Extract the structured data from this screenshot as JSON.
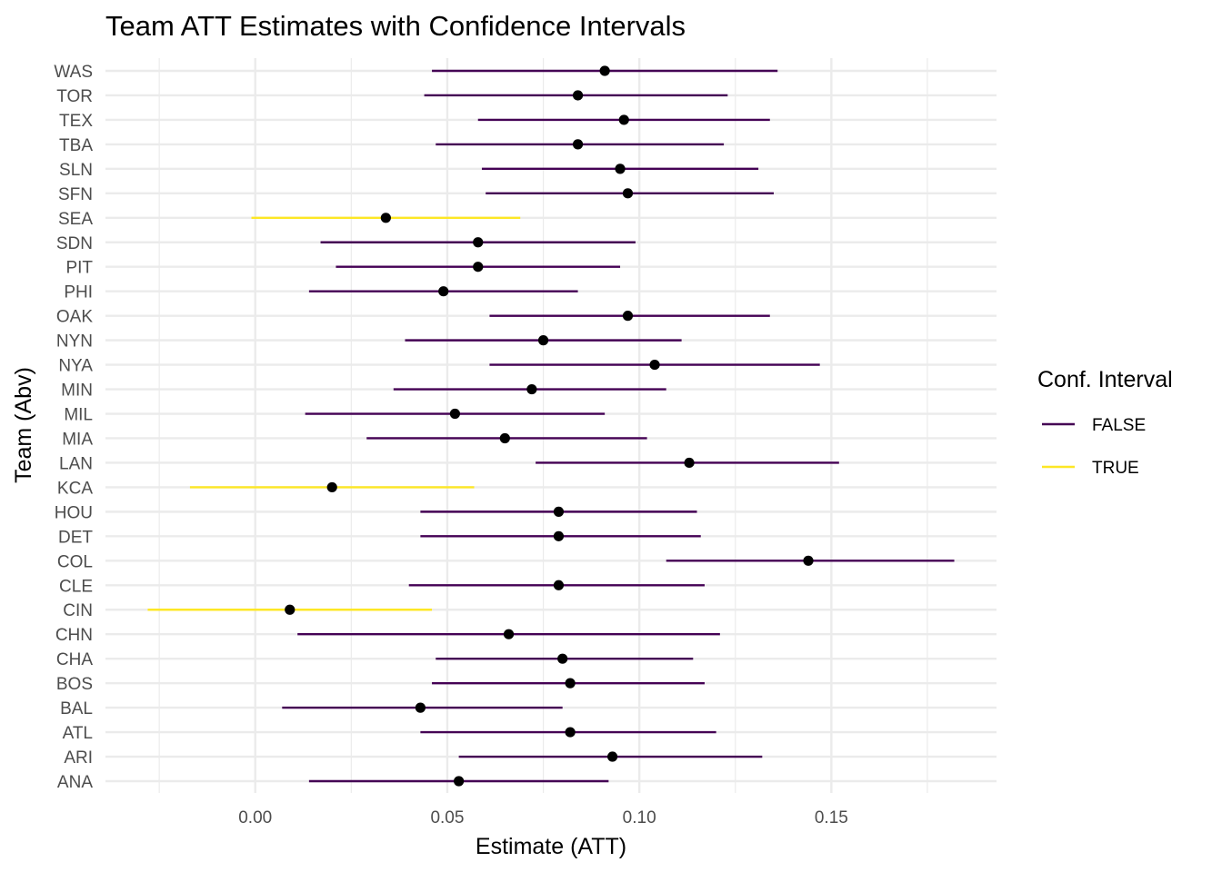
{
  "chart_data": {
    "type": "errorbar",
    "title": "Team ATT Estimates with Confidence Intervals",
    "xlabel": "Estimate (ATT)",
    "ylabel": "Team (Abv)",
    "xlim": [
      -0.039,
      0.193
    ],
    "x_ticks": [
      0.0,
      0.05,
      0.1,
      0.15
    ],
    "x_tick_labels": [
      "0.00",
      "0.05",
      "0.10",
      "0.15"
    ],
    "grid": true,
    "legend": {
      "title": "Conf. Interval",
      "position": "right",
      "entries": [
        {
          "label": "FALSE",
          "color": "#440154"
        },
        {
          "label": "TRUE",
          "color": "#FDE725"
        }
      ]
    },
    "point_color": "#000000",
    "categories": [
      "ANA",
      "ARI",
      "ATL",
      "BAL",
      "BOS",
      "CHA",
      "CHN",
      "CIN",
      "CLE",
      "COL",
      "DET",
      "HOU",
      "KCA",
      "LAN",
      "MIA",
      "MIL",
      "MIN",
      "NYA",
      "NYN",
      "OAK",
      "PHI",
      "PIT",
      "SDN",
      "SEA",
      "SFN",
      "SLN",
      "TBA",
      "TEX",
      "TOR",
      "WAS"
    ],
    "points": [
      {
        "team": "ANA",
        "estimate": 0.053,
        "lower": 0.014,
        "upper": 0.092,
        "ci": "FALSE"
      },
      {
        "team": "ARI",
        "estimate": 0.093,
        "lower": 0.053,
        "upper": 0.132,
        "ci": "FALSE"
      },
      {
        "team": "ATL",
        "estimate": 0.082,
        "lower": 0.043,
        "upper": 0.12,
        "ci": "FALSE"
      },
      {
        "team": "BAL",
        "estimate": 0.043,
        "lower": 0.007,
        "upper": 0.08,
        "ci": "FALSE"
      },
      {
        "team": "BOS",
        "estimate": 0.082,
        "lower": 0.046,
        "upper": 0.117,
        "ci": "FALSE"
      },
      {
        "team": "CHA",
        "estimate": 0.08,
        "lower": 0.047,
        "upper": 0.114,
        "ci": "FALSE"
      },
      {
        "team": "CHN",
        "estimate": 0.066,
        "lower": 0.011,
        "upper": 0.121,
        "ci": "FALSE"
      },
      {
        "team": "CIN",
        "estimate": 0.009,
        "lower": -0.028,
        "upper": 0.046,
        "ci": "TRUE"
      },
      {
        "team": "CLE",
        "estimate": 0.079,
        "lower": 0.04,
        "upper": 0.117,
        "ci": "FALSE"
      },
      {
        "team": "COL",
        "estimate": 0.144,
        "lower": 0.107,
        "upper": 0.182,
        "ci": "FALSE"
      },
      {
        "team": "DET",
        "estimate": 0.079,
        "lower": 0.043,
        "upper": 0.116,
        "ci": "FALSE"
      },
      {
        "team": "HOU",
        "estimate": 0.079,
        "lower": 0.043,
        "upper": 0.115,
        "ci": "FALSE"
      },
      {
        "team": "KCA",
        "estimate": 0.02,
        "lower": -0.017,
        "upper": 0.057,
        "ci": "TRUE"
      },
      {
        "team": "LAN",
        "estimate": 0.113,
        "lower": 0.073,
        "upper": 0.152,
        "ci": "FALSE"
      },
      {
        "team": "MIA",
        "estimate": 0.065,
        "lower": 0.029,
        "upper": 0.102,
        "ci": "FALSE"
      },
      {
        "team": "MIL",
        "estimate": 0.052,
        "lower": 0.013,
        "upper": 0.091,
        "ci": "FALSE"
      },
      {
        "team": "MIN",
        "estimate": 0.072,
        "lower": 0.036,
        "upper": 0.107,
        "ci": "FALSE"
      },
      {
        "team": "NYA",
        "estimate": 0.104,
        "lower": 0.061,
        "upper": 0.147,
        "ci": "FALSE"
      },
      {
        "team": "NYN",
        "estimate": 0.075,
        "lower": 0.039,
        "upper": 0.111,
        "ci": "FALSE"
      },
      {
        "team": "OAK",
        "estimate": 0.097,
        "lower": 0.061,
        "upper": 0.134,
        "ci": "FALSE"
      },
      {
        "team": "PHI",
        "estimate": 0.049,
        "lower": 0.014,
        "upper": 0.084,
        "ci": "FALSE"
      },
      {
        "team": "PIT",
        "estimate": 0.058,
        "lower": 0.021,
        "upper": 0.095,
        "ci": "FALSE"
      },
      {
        "team": "SDN",
        "estimate": 0.058,
        "lower": 0.017,
        "upper": 0.099,
        "ci": "FALSE"
      },
      {
        "team": "SEA",
        "estimate": 0.034,
        "lower": -0.001,
        "upper": 0.069,
        "ci": "TRUE"
      },
      {
        "team": "SFN",
        "estimate": 0.097,
        "lower": 0.06,
        "upper": 0.135,
        "ci": "FALSE"
      },
      {
        "team": "SLN",
        "estimate": 0.095,
        "lower": 0.059,
        "upper": 0.131,
        "ci": "FALSE"
      },
      {
        "team": "TBA",
        "estimate": 0.084,
        "lower": 0.047,
        "upper": 0.122,
        "ci": "FALSE"
      },
      {
        "team": "TEX",
        "estimate": 0.096,
        "lower": 0.058,
        "upper": 0.134,
        "ci": "FALSE"
      },
      {
        "team": "TOR",
        "estimate": 0.084,
        "lower": 0.044,
        "upper": 0.123,
        "ci": "FALSE"
      },
      {
        "team": "WAS",
        "estimate": 0.091,
        "lower": 0.046,
        "upper": 0.136,
        "ci": "FALSE"
      }
    ]
  }
}
